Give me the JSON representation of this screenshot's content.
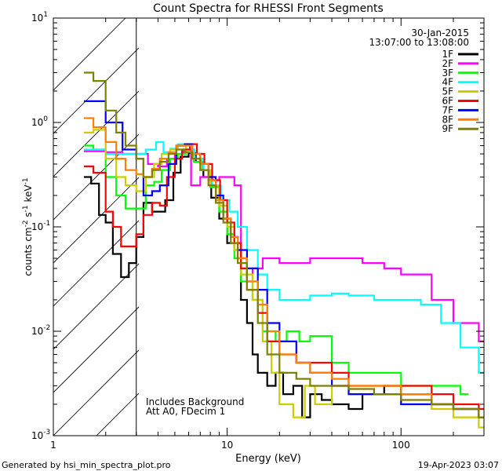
{
  "chart_data": {
    "type": "line",
    "title": "Count Spectra for RHESSI Front Segments",
    "xlabel": "Energy (keV)",
    "ylabel": "counts cm-2 s-1 keV-1",
    "xscale": "log",
    "yscale": "log",
    "xlim": [
      1,
      300
    ],
    "ylim": [
      0.001,
      10
    ],
    "x_ticks": [
      {
        "v": 1,
        "label": "1"
      },
      {
        "v": 10,
        "label": "10"
      },
      {
        "v": 100,
        "label": "100"
      }
    ],
    "y_ticks": [
      {
        "v": 0.001,
        "base": "10",
        "exp": "-3"
      },
      {
        "v": 0.01,
        "base": "10",
        "exp": "-2"
      },
      {
        "v": 0.1,
        "base": "10",
        "exp": "-1"
      },
      {
        "v": 1,
        "base": "10",
        "exp": "0"
      },
      {
        "v": 10,
        "base": "10",
        "exp": "1"
      }
    ],
    "date": "30-Jan-2015",
    "time_range": "13:07:00 to 13:08:00",
    "annotations": [
      "Includes Background",
      "Att A0, FDecim 1"
    ],
    "shaded_region": {
      "x_from": 1,
      "x_to": 3
    },
    "legend_position": "top-right",
    "series": [
      {
        "name": "1F",
        "color": "#000000",
        "points": [
          [
            1.5,
            0.3
          ],
          [
            1.65,
            0.26
          ],
          [
            1.83,
            0.13
          ],
          [
            2.0,
            0.11
          ],
          [
            2.2,
            0.055
          ],
          [
            2.45,
            0.033
          ],
          [
            2.72,
            0.045
          ],
          [
            3.0,
            0.08
          ],
          [
            3.3,
            0.17
          ],
          [
            3.7,
            0.14
          ],
          [
            4.0,
            0.14
          ],
          [
            4.4,
            0.18
          ],
          [
            4.9,
            0.33
          ],
          [
            5.4,
            0.47
          ],
          [
            6.0,
            0.51
          ],
          [
            6.6,
            0.42
          ],
          [
            7.3,
            0.3
          ],
          [
            8.1,
            0.19
          ],
          [
            9.0,
            0.12
          ],
          [
            10.0,
            0.07
          ],
          [
            11,
            0.06
          ],
          [
            12,
            0.02
          ],
          [
            13,
            0.012
          ],
          [
            14,
            0.006
          ],
          [
            15,
            0.004
          ],
          [
            17,
            0.003
          ],
          [
            19,
            0.004
          ],
          [
            21,
            0.0025
          ],
          [
            24,
            0.003
          ],
          [
            27,
            0.0015
          ],
          [
            30,
            0.0025
          ],
          [
            35,
            0.0022
          ],
          [
            40,
            0.002
          ],
          [
            50,
            0.0018
          ],
          [
            60,
            0.0025
          ],
          [
            80,
            0.003
          ],
          [
            100,
            0.0025
          ],
          [
            150,
            0.002
          ],
          [
            200,
            0.0018
          ],
          [
            280,
            0.0015
          ]
        ]
      },
      {
        "name": "2F",
        "color": "#ff00ff",
        "points": [
          [
            1.5,
            0.53
          ],
          [
            2.0,
            0.52
          ],
          [
            2.5,
            0.5
          ],
          [
            3.0,
            0.5
          ],
          [
            3.5,
            0.4
          ],
          [
            4.0,
            0.38
          ],
          [
            4.5,
            0.45
          ],
          [
            5.0,
            0.5
          ],
          [
            5.6,
            0.55
          ],
          [
            6.2,
            0.25
          ],
          [
            7.0,
            0.3
          ],
          [
            8.0,
            0.28
          ],
          [
            9.0,
            0.3
          ],
          [
            10,
            0.3
          ],
          [
            11,
            0.25
          ],
          [
            12,
            0.05
          ],
          [
            13,
            0.03
          ],
          [
            14,
            0.04
          ],
          [
            16,
            0.05
          ],
          [
            18,
            0.05
          ],
          [
            20,
            0.045
          ],
          [
            25,
            0.045
          ],
          [
            30,
            0.05
          ],
          [
            40,
            0.05
          ],
          [
            50,
            0.05
          ],
          [
            60,
            0.045
          ],
          [
            80,
            0.04
          ],
          [
            100,
            0.035
          ],
          [
            150,
            0.02
          ],
          [
            200,
            0.012
          ],
          [
            280,
            0.008
          ]
        ]
      },
      {
        "name": "3F",
        "color": "#00ff00",
        "points": [
          [
            1.5,
            0.6
          ],
          [
            1.7,
            0.55
          ],
          [
            2.0,
            0.3
          ],
          [
            2.3,
            0.2
          ],
          [
            2.6,
            0.15
          ],
          [
            3.0,
            0.15
          ],
          [
            3.4,
            0.25
          ],
          [
            3.8,
            0.27
          ],
          [
            4.2,
            0.35
          ],
          [
            4.7,
            0.45
          ],
          [
            5.2,
            0.5
          ],
          [
            5.8,
            0.52
          ],
          [
            6.4,
            0.42
          ],
          [
            7.1,
            0.35
          ],
          [
            8.0,
            0.24
          ],
          [
            9.0,
            0.14
          ],
          [
            10,
            0.085
          ],
          [
            11,
            0.05
          ],
          [
            12,
            0.03
          ],
          [
            14,
            0.02
          ],
          [
            16,
            0.01
          ],
          [
            19,
            0.008
          ],
          [
            22,
            0.01
          ],
          [
            26,
            0.008
          ],
          [
            30,
            0.009
          ],
          [
            40,
            0.005
          ],
          [
            50,
            0.004
          ],
          [
            70,
            0.004
          ],
          [
            100,
            0.003
          ],
          [
            150,
            0.003
          ],
          [
            220,
            0.0025
          ]
        ]
      },
      {
        "name": "4F",
        "color": "#00ffff",
        "points": [
          [
            1.5,
            0.55
          ],
          [
            2.0,
            0.5
          ],
          [
            2.5,
            0.5
          ],
          [
            3.0,
            0.5
          ],
          [
            3.4,
            0.55
          ],
          [
            3.9,
            0.65
          ],
          [
            4.3,
            0.52
          ],
          [
            4.7,
            0.56
          ],
          [
            5.2,
            0.62
          ],
          [
            5.8,
            0.55
          ],
          [
            6.5,
            0.45
          ],
          [
            7.3,
            0.35
          ],
          [
            8.2,
            0.25
          ],
          [
            9.2,
            0.18
          ],
          [
            10.3,
            0.14
          ],
          [
            11.5,
            0.1
          ],
          [
            13,
            0.06
          ],
          [
            15,
            0.035
          ],
          [
            17,
            0.025
          ],
          [
            20,
            0.02
          ],
          [
            25,
            0.02
          ],
          [
            30,
            0.022
          ],
          [
            40,
            0.023
          ],
          [
            50,
            0.022
          ],
          [
            70,
            0.02
          ],
          [
            100,
            0.02
          ],
          [
            130,
            0.018
          ],
          [
            170,
            0.012
          ],
          [
            220,
            0.007
          ],
          [
            280,
            0.004
          ]
        ]
      },
      {
        "name": "5F",
        "color": "#cccc00",
        "points": [
          [
            1.5,
            0.8
          ],
          [
            1.7,
            0.85
          ],
          [
            2.0,
            0.45
          ],
          [
            2.3,
            0.3
          ],
          [
            2.6,
            0.25
          ],
          [
            3.0,
            0.22
          ],
          [
            3.4,
            0.3
          ],
          [
            3.8,
            0.4
          ],
          [
            4.2,
            0.5
          ],
          [
            4.7,
            0.55
          ],
          [
            5.2,
            0.6
          ],
          [
            5.8,
            0.52
          ],
          [
            6.4,
            0.45
          ],
          [
            7.1,
            0.35
          ],
          [
            8.0,
            0.25
          ],
          [
            9.0,
            0.16
          ],
          [
            10,
            0.1
          ],
          [
            11,
            0.06
          ],
          [
            12,
            0.035
          ],
          [
            14,
            0.02
          ],
          [
            16,
            0.008
          ],
          [
            18,
            0.004
          ],
          [
            20,
            0.002
          ],
          [
            24,
            0.0015
          ],
          [
            28,
            0.003
          ],
          [
            32,
            0.002
          ],
          [
            40,
            0.003
          ],
          [
            50,
            0.0025
          ],
          [
            70,
            0.0025
          ],
          [
            100,
            0.002
          ],
          [
            150,
            0.0018
          ],
          [
            200,
            0.0015
          ],
          [
            280,
            0.0012
          ]
        ]
      },
      {
        "name": "6F",
        "color": "#ff0000",
        "points": [
          [
            1.5,
            0.38
          ],
          [
            1.7,
            0.33
          ],
          [
            2.0,
            0.14
          ],
          [
            2.2,
            0.1
          ],
          [
            2.45,
            0.065
          ],
          [
            2.72,
            0.065
          ],
          [
            3.0,
            0.085
          ],
          [
            3.3,
            0.13
          ],
          [
            3.7,
            0.17
          ],
          [
            4.1,
            0.16
          ],
          [
            4.5,
            0.3
          ],
          [
            5.0,
            0.45
          ],
          [
            5.5,
            0.55
          ],
          [
            6.1,
            0.62
          ],
          [
            6.7,
            0.5
          ],
          [
            7.4,
            0.4
          ],
          [
            8.2,
            0.28
          ],
          [
            9.1,
            0.18
          ],
          [
            10,
            0.11
          ],
          [
            11,
            0.07
          ],
          [
            12,
            0.04
          ],
          [
            13,
            0.025
          ],
          [
            15,
            0.015
          ],
          [
            17,
            0.008
          ],
          [
            20,
            0.006
          ],
          [
            25,
            0.005
          ],
          [
            30,
            0.005
          ],
          [
            40,
            0.004
          ],
          [
            50,
            0.003
          ],
          [
            70,
            0.003
          ],
          [
            100,
            0.003
          ],
          [
            150,
            0.0025
          ],
          [
            200,
            0.002
          ],
          [
            280,
            0.0018
          ]
        ]
      },
      {
        "name": "7F",
        "color": "#0000ff",
        "points": [
          [
            1.5,
            1.6
          ],
          [
            2.0,
            1.0
          ],
          [
            2.5,
            0.55
          ],
          [
            3.0,
            0.45
          ],
          [
            3.3,
            0.2
          ],
          [
            3.7,
            0.22
          ],
          [
            4.1,
            0.25
          ],
          [
            4.6,
            0.4
          ],
          [
            5.1,
            0.6
          ],
          [
            5.7,
            0.62
          ],
          [
            6.3,
            0.5
          ],
          [
            7.0,
            0.4
          ],
          [
            7.8,
            0.3
          ],
          [
            8.6,
            0.2
          ],
          [
            9.5,
            0.12
          ],
          [
            10.5,
            0.08
          ],
          [
            11.5,
            0.06
          ],
          [
            13,
            0.04
          ],
          [
            15,
            0.025
          ],
          [
            17,
            0.012
          ],
          [
            20,
            0.008
          ],
          [
            25,
            0.005
          ],
          [
            30,
            0.004
          ],
          [
            40,
            0.003
          ],
          [
            50,
            0.0025
          ],
          [
            70,
            0.0025
          ],
          [
            100,
            0.002
          ],
          [
            150,
            0.002
          ],
          [
            200,
            0.0018
          ],
          [
            280,
            0.0015
          ]
        ]
      },
      {
        "name": "8F",
        "color": "#ff8000",
        "points": [
          [
            1.5,
            1.1
          ],
          [
            1.7,
            0.9
          ],
          [
            2.0,
            0.65
          ],
          [
            2.3,
            0.45
          ],
          [
            2.6,
            0.35
          ],
          [
            3.0,
            0.32
          ],
          [
            3.3,
            0.3
          ],
          [
            3.7,
            0.36
          ],
          [
            4.1,
            0.45
          ],
          [
            4.6,
            0.52
          ],
          [
            5.1,
            0.6
          ],
          [
            5.7,
            0.6
          ],
          [
            6.3,
            0.5
          ],
          [
            7.0,
            0.4
          ],
          [
            7.8,
            0.28
          ],
          [
            8.6,
            0.18
          ],
          [
            9.5,
            0.12
          ],
          [
            10.5,
            0.08
          ],
          [
            11.5,
            0.05
          ],
          [
            13,
            0.03
          ],
          [
            15,
            0.018
          ],
          [
            17,
            0.01
          ],
          [
            20,
            0.006
          ],
          [
            25,
            0.005
          ],
          [
            30,
            0.004
          ],
          [
            40,
            0.0035
          ],
          [
            50,
            0.003
          ],
          [
            70,
            0.003
          ],
          [
            100,
            0.0025
          ],
          [
            150,
            0.002
          ],
          [
            200,
            0.0018
          ],
          [
            280,
            0.0015
          ]
        ]
      },
      {
        "name": "9F",
        "color": "#808000",
        "points": [
          [
            1.5,
            3.0
          ],
          [
            1.7,
            2.5
          ],
          [
            2.0,
            1.3
          ],
          [
            2.3,
            0.8
          ],
          [
            2.6,
            0.6
          ],
          [
            3.0,
            0.45
          ],
          [
            3.3,
            0.3
          ],
          [
            3.7,
            0.35
          ],
          [
            4.1,
            0.42
          ],
          [
            4.6,
            0.5
          ],
          [
            5.1,
            0.55
          ],
          [
            5.7,
            0.52
          ],
          [
            6.3,
            0.45
          ],
          [
            7.0,
            0.35
          ],
          [
            7.8,
            0.25
          ],
          [
            8.6,
            0.17
          ],
          [
            9.5,
            0.11
          ],
          [
            10.5,
            0.07
          ],
          [
            11.5,
            0.045
          ],
          [
            13,
            0.025
          ],
          [
            15,
            0.012
          ],
          [
            17,
            0.006
          ],
          [
            20,
            0.004
          ],
          [
            25,
            0.0035
          ],
          [
            30,
            0.003
          ],
          [
            40,
            0.003
          ],
          [
            50,
            0.0028
          ],
          [
            70,
            0.0025
          ],
          [
            100,
            0.0022
          ],
          [
            150,
            0.002
          ],
          [
            200,
            0.0018
          ],
          [
            280,
            0.0015
          ]
        ]
      }
    ]
  },
  "footer": {
    "left": "Generated by hsi_min_spectra_plot.pro",
    "right": "19-Apr-2023 03:07"
  }
}
